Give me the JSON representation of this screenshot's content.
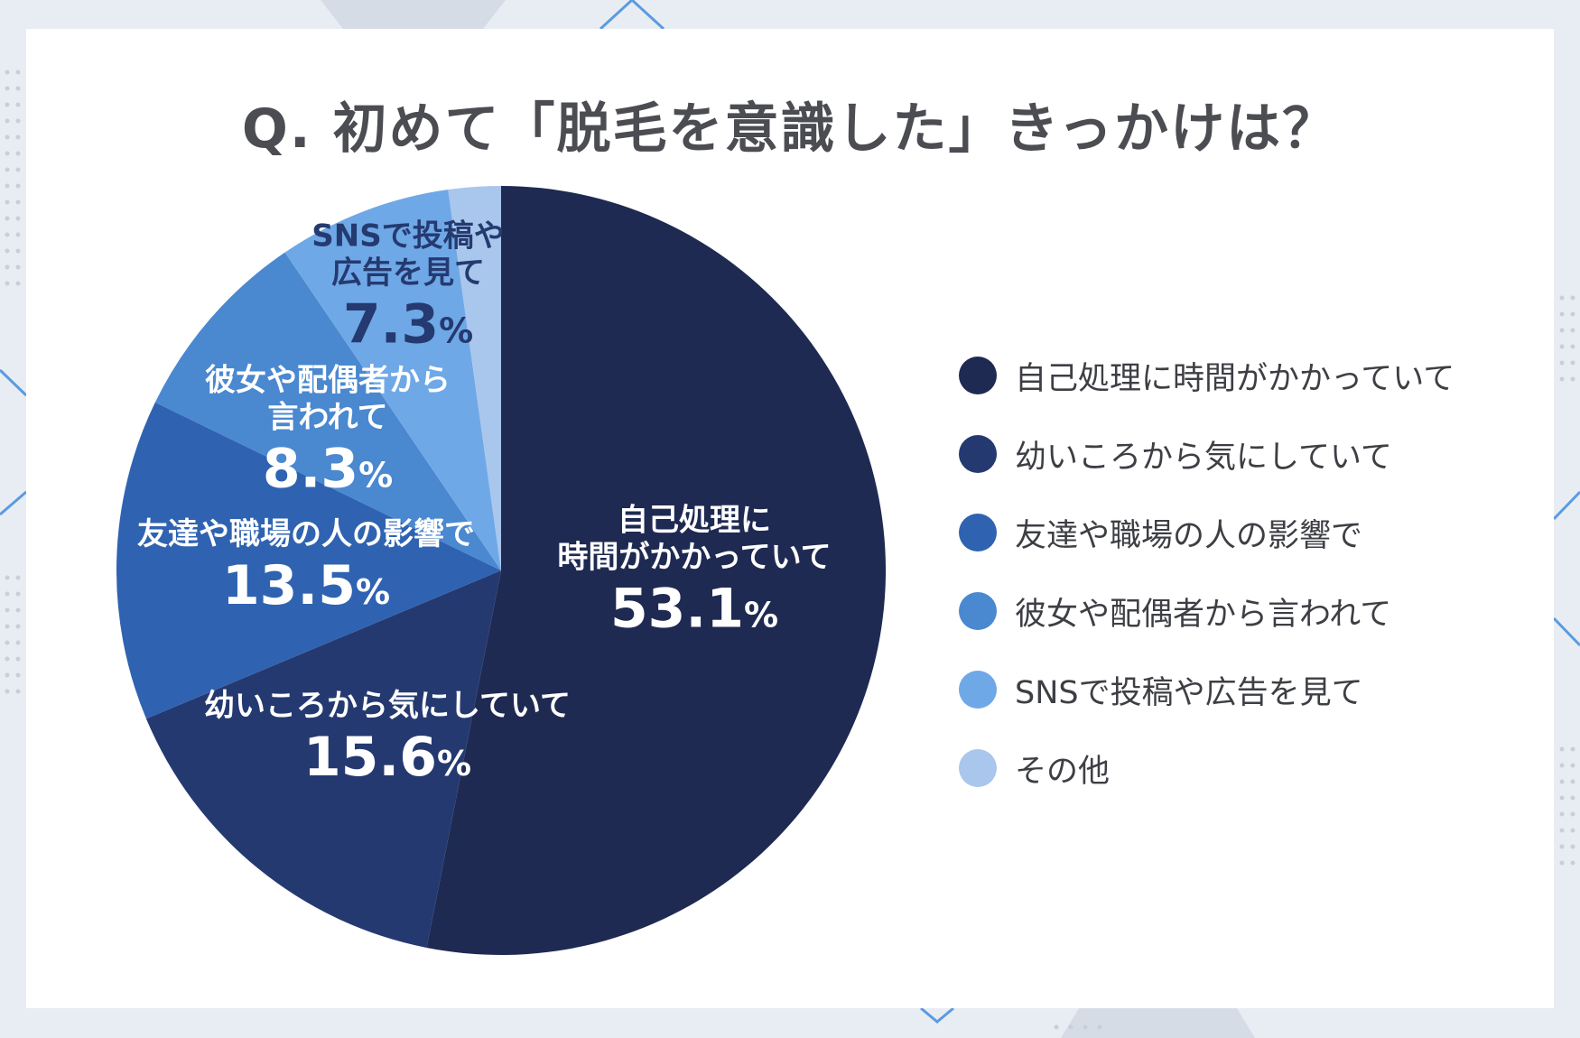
{
  "title": "Q. 初めて「脱毛を意識した」きっかけは？",
  "colors": {
    "background": "#e8edf3",
    "card": "#ffffff",
    "slices": [
      "#1f2a52",
      "#253971",
      "#2f63b1",
      "#4a88d0",
      "#6fa8e6",
      "#a9c6ec"
    ]
  },
  "chart_data": {
    "type": "pie",
    "start": "12 o'clock, clockwise",
    "series": [
      {
        "values": [
          53.1,
          15.6,
          13.5,
          8.3,
          7.3,
          2.2
        ],
        "categories": [
          "自己処理に時間がかかっていて",
          "幼いころから気にしていて",
          "友達や職場の人の影響で",
          "彼女や配偶者から言われて",
          "SNSで投稿や広告を見て",
          "その他"
        ]
      }
    ],
    "data_labels": [
      {
        "lines": [
          "自己処理に",
          "時間がかかっていて"
        ],
        "value": "53.1",
        "unit": "%"
      },
      {
        "lines": [
          "幼いころから気にしていて"
        ],
        "value": "15.6",
        "unit": "%"
      },
      {
        "lines": [
          "友達や職場の人の影響で"
        ],
        "value": "13.5",
        "unit": "%"
      },
      {
        "lines": [
          "彼女や配偶者から",
          "言われて"
        ],
        "value": "8.3",
        "unit": "%"
      },
      {
        "lines": [
          "SNSで投稿や",
          "広告を見て"
        ],
        "value": "7.3",
        "unit": "%"
      }
    ],
    "legend": {
      "position": "right",
      "items": [
        "自己処理に時間がかかっていて",
        "幼いころから気にしていて",
        "友達や職場の人の影響で",
        "彼女や配偶者から言われて",
        "SNSで投稿や広告を見て",
        "その他"
      ]
    }
  }
}
